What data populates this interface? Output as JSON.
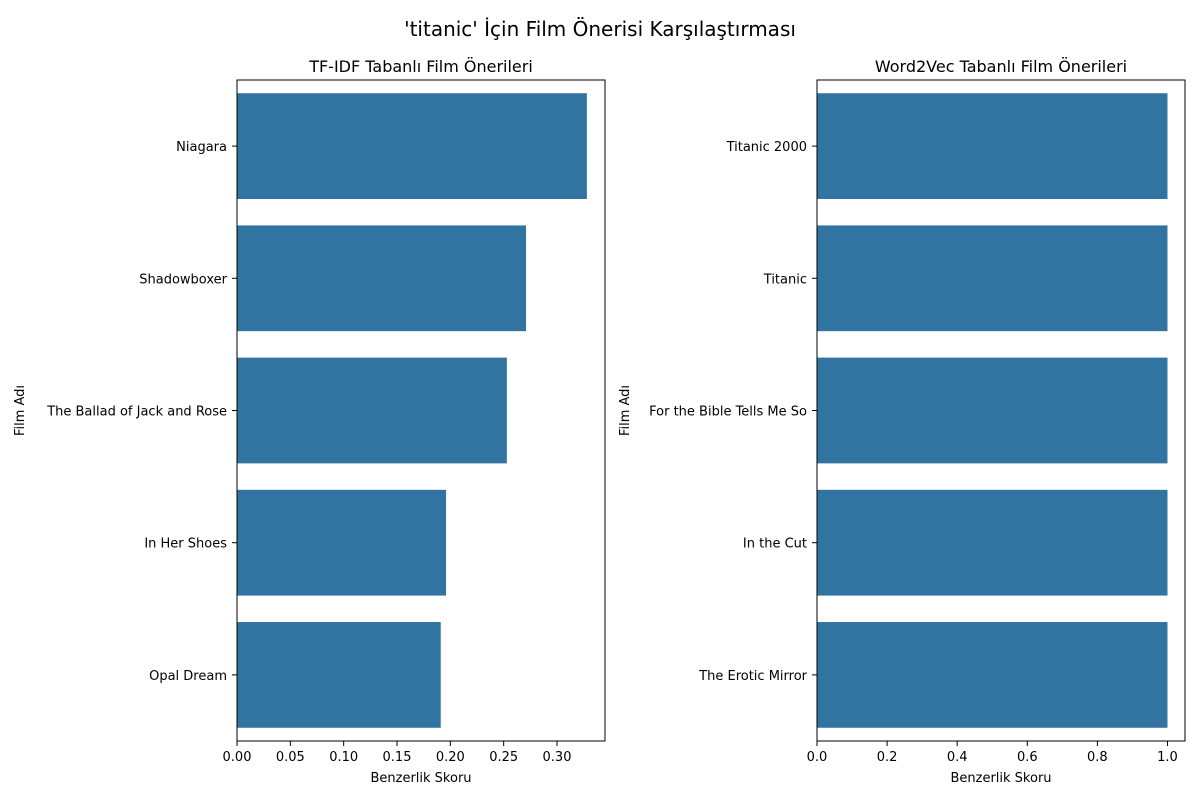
{
  "suptitle": "'titanic' İçin Film Önerisi Karşılaştırması",
  "colors": {
    "bar": "#3274a1",
    "axis": "#000000",
    "background": "#ffffff"
  },
  "chart_data": [
    {
      "type": "bar",
      "orientation": "horizontal",
      "title": "TF-IDF Tabanlı Film Önerileri",
      "xlabel": "Benzerlik Skoru",
      "ylabel": "Film Adı",
      "categories": [
        "Niagara",
        "Shadowboxer",
        "The Ballad of Jack and Rose",
        "In Her Shoes",
        "Opal Dream"
      ],
      "values": [
        0.328,
        0.271,
        0.253,
        0.196,
        0.191
      ],
      "xlim": [
        0,
        0.345
      ],
      "xticks": [
        0.0,
        0.05,
        0.1,
        0.15,
        0.2,
        0.25,
        0.3
      ],
      "xtick_labels": [
        "0.00",
        "0.05",
        "0.10",
        "0.15",
        "0.20",
        "0.25",
        "0.30"
      ],
      "grid": false
    },
    {
      "type": "bar",
      "orientation": "horizontal",
      "title": "Word2Vec Tabanlı Film Önerileri",
      "xlabel": "Benzerlik Skoru",
      "ylabel": "Film Adı",
      "categories": [
        "Titanic 2000",
        "Titanic",
        "For the Bible Tells Me So",
        "In the Cut",
        "The Erotic Mirror"
      ],
      "values": [
        1.0,
        1.0,
        1.0,
        1.0,
        1.0
      ],
      "xlim": [
        0,
        1.05
      ],
      "xticks": [
        0.0,
        0.2,
        0.4,
        0.6,
        0.8,
        1.0
      ],
      "xtick_labels": [
        "0.0",
        "0.2",
        "0.4",
        "0.6",
        "0.8",
        "1.0"
      ],
      "grid": false
    }
  ]
}
